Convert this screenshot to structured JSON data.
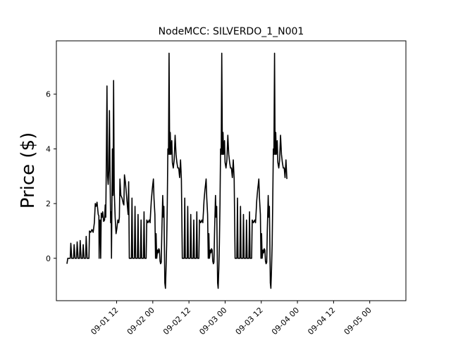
{
  "chart_data": {
    "type": "line",
    "title": "NodeMCC: SILVERDO_1_N001",
    "xlabel": "",
    "ylabel": "Price ($)",
    "x_unit": "hours since 09-01 00",
    "xlim": [
      -8.0,
      108.0
    ],
    "ylim": [
      -1.55,
      7.95
    ],
    "y_ticks": [
      0,
      2,
      4,
      6
    ],
    "x_ticks": [
      {
        "label": "09-01 12",
        "x": 12
      },
      {
        "label": "09-02 00",
        "x": 24
      },
      {
        "label": "09-02 12",
        "x": 36
      },
      {
        "label": "09-03 00",
        "x": 48
      },
      {
        "label": "09-03 12",
        "x": 60
      },
      {
        "label": "09-04 00",
        "x": 72
      },
      {
        "label": "09-04 12",
        "x": 84
      },
      {
        "label": "09-05 00",
        "x": 96
      }
    ],
    "grid": false,
    "legend": "none",
    "series": [
      {
        "color": "#000000",
        "points": [
          [
            -4.5,
            -0.2
          ],
          [
            -4.2,
            0.0
          ],
          [
            -3.4,
            0.0
          ],
          [
            -3.2,
            0.55
          ],
          [
            -2.9,
            0.0
          ],
          [
            -2.3,
            0.0
          ],
          [
            -2.1,
            0.5
          ],
          [
            -1.8,
            0.0
          ],
          [
            -1.3,
            0.0
          ],
          [
            -1.1,
            0.6
          ],
          [
            -0.8,
            0.0
          ],
          [
            -0.3,
            0.0
          ],
          [
            -0.1,
            0.65
          ],
          [
            0.2,
            0.0
          ],
          [
            0.7,
            0.0
          ],
          [
            0.9,
            0.5
          ],
          [
            1.2,
            0.0
          ],
          [
            1.7,
            0.0
          ],
          [
            1.9,
            0.8
          ],
          [
            2.2,
            0.0
          ],
          [
            2.8,
            0.0
          ],
          [
            3.0,
            1.0
          ],
          [
            3.4,
            0.95
          ],
          [
            3.8,
            1.05
          ],
          [
            4.2,
            0.95
          ],
          [
            4.6,
            1.3
          ],
          [
            4.9,
            2.0
          ],
          [
            5.2,
            1.9
          ],
          [
            5.5,
            2.05
          ],
          [
            5.9,
            1.6
          ],
          [
            6.1,
            1.55
          ],
          [
            6.2,
            0.0
          ],
          [
            6.3,
            1.3
          ],
          [
            6.5,
            1.4
          ],
          [
            6.7,
            0.0
          ],
          [
            6.9,
            1.65
          ],
          [
            7.2,
            1.5
          ],
          [
            7.4,
            1.7
          ],
          [
            7.7,
            1.35
          ],
          [
            8.0,
            1.4
          ],
          [
            8.2,
            1.95
          ],
          [
            8.4,
            1.5
          ],
          [
            8.6,
            3.8
          ],
          [
            8.8,
            6.3
          ],
          [
            9.0,
            3.0
          ],
          [
            9.2,
            2.7
          ],
          [
            9.4,
            3.2
          ],
          [
            9.6,
            5.4
          ],
          [
            9.8,
            3.2
          ],
          [
            10.0,
            1.3
          ],
          [
            10.2,
            1.7
          ],
          [
            10.3,
            0.0
          ],
          [
            10.4,
            1.6
          ],
          [
            10.6,
            4.0
          ],
          [
            10.8,
            2.3
          ],
          [
            11.0,
            6.5
          ],
          [
            11.2,
            2.5
          ],
          [
            11.5,
            1.5
          ],
          [
            11.8,
            0.9
          ],
          [
            12.1,
            1.1
          ],
          [
            12.4,
            1.4
          ],
          [
            12.7,
            1.3
          ],
          [
            12.9,
            1.5
          ],
          [
            13.1,
            2.9
          ],
          [
            13.4,
            2.3
          ],
          [
            13.8,
            2.2
          ],
          [
            14.2,
            2.0
          ],
          [
            14.4,
            1.95
          ],
          [
            14.6,
            3.05
          ],
          [
            14.9,
            2.8
          ],
          [
            15.2,
            2.4
          ],
          [
            15.5,
            2.0
          ],
          [
            15.8,
            1.6
          ],
          [
            16.0,
            2.8
          ],
          [
            16.2,
            0.0
          ],
          [
            16.9,
            0.0
          ],
          [
            17.1,
            2.2
          ],
          [
            17.3,
            0.0
          ],
          [
            17.9,
            0.0
          ],
          [
            18.1,
            1.9
          ],
          [
            18.3,
            0.0
          ],
          [
            18.9,
            0.0
          ],
          [
            19.1,
            1.6
          ],
          [
            19.3,
            0.0
          ],
          [
            19.9,
            0.0
          ],
          [
            20.1,
            1.4
          ],
          [
            20.3,
            0.0
          ],
          [
            20.9,
            0.0
          ],
          [
            21.1,
            1.7
          ],
          [
            21.3,
            0.0
          ],
          [
            21.8,
            0.0
          ],
          [
            22.0,
            1.4
          ],
          [
            22.4,
            1.3
          ],
          [
            22.8,
            1.4
          ],
          [
            23.1,
            1.3
          ],
          [
            23.3,
            1.7
          ],
          [
            23.5,
            2.1
          ],
          [
            23.8,
            2.5
          ],
          [
            24.0,
            2.7
          ],
          [
            24.2,
            2.9
          ],
          [
            24.4,
            2.2
          ],
          [
            24.7,
            1.6
          ],
          [
            24.9,
            0.0
          ],
          [
            25.1,
            0.9
          ],
          [
            25.3,
            0.0
          ],
          [
            25.6,
            0.3
          ],
          [
            25.8,
            0.2
          ],
          [
            26.0,
            0.35
          ],
          [
            26.2,
            0.3
          ],
          [
            26.4,
            -0.1
          ],
          [
            26.6,
            -0.2
          ],
          [
            26.8,
            -0.15
          ],
          [
            27.0,
            1.0
          ],
          [
            27.3,
            2.3
          ],
          [
            27.5,
            1.5
          ],
          [
            27.7,
            1.9
          ],
          [
            28.0,
            -0.9
          ],
          [
            28.2,
            -1.1
          ],
          [
            28.4,
            -0.4
          ],
          [
            28.6,
            0.5
          ],
          [
            28.8,
            2.0
          ],
          [
            29.0,
            4.0
          ],
          [
            29.2,
            3.8
          ],
          [
            29.4,
            7.5
          ],
          [
            29.6,
            3.8
          ],
          [
            29.8,
            4.6
          ],
          [
            30.0,
            3.8
          ],
          [
            30.3,
            4.3
          ],
          [
            30.5,
            3.5
          ],
          [
            30.8,
            3.3
          ],
          [
            31.1,
            3.6
          ],
          [
            31.4,
            4.5
          ],
          [
            31.7,
            3.8
          ],
          [
            32.0,
            3.5
          ],
          [
            32.3,
            3.3
          ],
          [
            32.6,
            3.3
          ],
          [
            32.9,
            2.95
          ],
          [
            33.2,
            3.6
          ],
          [
            33.5,
            2.9
          ],
          [
            33.8,
            0.0
          ],
          [
            34.4,
            0.0
          ],
          [
            34.6,
            2.2
          ],
          [
            34.8,
            0.0
          ],
          [
            35.4,
            0.0
          ],
          [
            35.6,
            1.9
          ],
          [
            35.8,
            0.0
          ],
          [
            36.4,
            0.0
          ],
          [
            36.6,
            1.6
          ],
          [
            36.8,
            0.0
          ],
          [
            37.4,
            0.0
          ],
          [
            37.6,
            1.4
          ],
          [
            37.8,
            0.0
          ],
          [
            38.4,
            0.0
          ],
          [
            38.6,
            1.7
          ],
          [
            38.8,
            0.0
          ],
          [
            39.3,
            0.0
          ],
          [
            39.5,
            1.4
          ],
          [
            39.9,
            1.3
          ],
          [
            40.3,
            1.4
          ],
          [
            40.6,
            1.3
          ],
          [
            40.8,
            1.7
          ],
          [
            41.0,
            2.1
          ],
          [
            41.3,
            2.5
          ],
          [
            41.5,
            2.7
          ],
          [
            41.7,
            2.9
          ],
          [
            41.9,
            2.2
          ],
          [
            42.2,
            1.6
          ],
          [
            42.4,
            0.0
          ],
          [
            42.6,
            0.9
          ],
          [
            42.8,
            0.0
          ],
          [
            43.1,
            0.3
          ],
          [
            43.3,
            0.2
          ],
          [
            43.5,
            0.35
          ],
          [
            43.7,
            0.3
          ],
          [
            43.9,
            -0.1
          ],
          [
            44.1,
            -0.2
          ],
          [
            44.3,
            -0.15
          ],
          [
            44.5,
            1.0
          ],
          [
            44.8,
            2.3
          ],
          [
            45.0,
            1.5
          ],
          [
            45.2,
            1.9
          ],
          [
            45.5,
            -0.9
          ],
          [
            45.7,
            -1.1
          ],
          [
            45.9,
            -0.4
          ],
          [
            46.1,
            0.5
          ],
          [
            46.3,
            2.0
          ],
          [
            46.5,
            4.0
          ],
          [
            46.7,
            3.8
          ],
          [
            46.9,
            7.5
          ],
          [
            47.1,
            3.8
          ],
          [
            47.3,
            4.6
          ],
          [
            47.5,
            3.8
          ],
          [
            47.8,
            4.3
          ],
          [
            48.0,
            3.5
          ],
          [
            48.3,
            3.3
          ],
          [
            48.6,
            3.6
          ],
          [
            48.9,
            4.5
          ],
          [
            49.2,
            3.8
          ],
          [
            49.5,
            3.5
          ],
          [
            49.8,
            3.3
          ],
          [
            50.1,
            3.3
          ],
          [
            50.4,
            2.95
          ],
          [
            50.7,
            3.6
          ],
          [
            51.0,
            2.9
          ],
          [
            51.3,
            0.0
          ],
          [
            51.9,
            0.0
          ],
          [
            52.1,
            2.2
          ],
          [
            52.3,
            0.0
          ],
          [
            52.9,
            0.0
          ],
          [
            53.1,
            1.9
          ],
          [
            53.3,
            0.0
          ],
          [
            53.9,
            0.0
          ],
          [
            54.1,
            1.6
          ],
          [
            54.3,
            0.0
          ],
          [
            54.9,
            0.0
          ],
          [
            55.1,
            1.4
          ],
          [
            55.3,
            0.0
          ],
          [
            55.9,
            0.0
          ],
          [
            56.1,
            1.7
          ],
          [
            56.3,
            0.0
          ],
          [
            56.8,
            0.0
          ],
          [
            57.0,
            1.4
          ],
          [
            57.4,
            1.3
          ],
          [
            57.8,
            1.4
          ],
          [
            58.1,
            1.3
          ],
          [
            58.3,
            1.7
          ],
          [
            58.5,
            2.1
          ],
          [
            58.8,
            2.5
          ],
          [
            59.0,
            2.7
          ],
          [
            59.2,
            2.9
          ],
          [
            59.4,
            2.2
          ],
          [
            59.7,
            1.6
          ],
          [
            59.9,
            0.0
          ],
          [
            60.1,
            0.9
          ],
          [
            60.3,
            0.0
          ],
          [
            60.6,
            0.3
          ],
          [
            60.8,
            0.2
          ],
          [
            61.0,
            0.35
          ],
          [
            61.2,
            0.3
          ],
          [
            61.4,
            -0.1
          ],
          [
            61.6,
            -0.2
          ],
          [
            61.8,
            -0.15
          ],
          [
            62.0,
            1.0
          ],
          [
            62.3,
            2.3
          ],
          [
            62.5,
            1.5
          ],
          [
            62.7,
            1.9
          ],
          [
            63.0,
            -0.9
          ],
          [
            63.2,
            -1.1
          ],
          [
            63.4,
            -0.4
          ],
          [
            63.6,
            0.5
          ],
          [
            63.8,
            2.0
          ],
          [
            64.0,
            4.0
          ],
          [
            64.2,
            3.8
          ],
          [
            64.4,
            7.5
          ],
          [
            64.6,
            3.8
          ],
          [
            64.8,
            4.6
          ],
          [
            65.0,
            3.8
          ],
          [
            65.3,
            4.3
          ],
          [
            65.5,
            3.5
          ],
          [
            65.8,
            3.3
          ],
          [
            66.1,
            3.6
          ],
          [
            66.4,
            4.5
          ],
          [
            66.7,
            3.8
          ],
          [
            67.0,
            3.5
          ],
          [
            67.3,
            3.3
          ],
          [
            67.6,
            3.3
          ],
          [
            67.9,
            2.95
          ],
          [
            68.2,
            3.6
          ],
          [
            68.5,
            2.9
          ]
        ]
      }
    ]
  }
}
